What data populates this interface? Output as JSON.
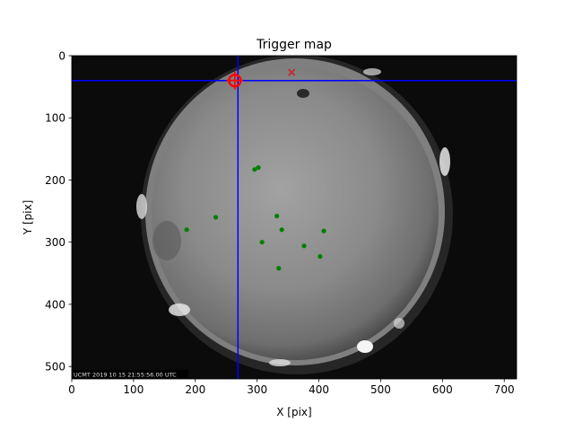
{
  "chart_data": {
    "type": "scatter",
    "title": "Trigger map",
    "xlabel": "X [pix]",
    "ylabel": "Y [pix]",
    "xlim": [
      0,
      720
    ],
    "ylim": [
      0,
      520
    ],
    "y_inverted": true,
    "x_ticks": [
      "0",
      "100",
      "200",
      "300",
      "400",
      "500",
      "600",
      "700"
    ],
    "y_ticks": [
      "0",
      "100",
      "200",
      "300",
      "400",
      "500"
    ],
    "grid": false,
    "background_image": "grayscale sky camera image (circular fisheye)",
    "timestamp_overlay": "UCMT 2019 10 15 21:55:56.00 UTC",
    "crosshair": {
      "x": 269,
      "y": 40,
      "color": "#0000ff"
    },
    "series": [
      {
        "marker": "circle",
        "color": "#008000",
        "points": [
          [
            296,
            183
          ],
          [
            302,
            180
          ],
          [
            186,
            280
          ],
          [
            233,
            260
          ],
          [
            332,
            258
          ],
          [
            340,
            280
          ],
          [
            308,
            300
          ],
          [
            376,
            306
          ],
          [
            408,
            282
          ],
          [
            402,
            323
          ],
          [
            335,
            342
          ]
        ]
      },
      {
        "marker": "x",
        "color": "#cc2222",
        "points": [
          [
            356,
            27
          ]
        ]
      },
      {
        "marker": "circle-plus",
        "color": "#ff0000",
        "points": [
          [
            264,
            40
          ]
        ]
      }
    ]
  },
  "colors": {
    "crosshair": "#0000ff",
    "trigger_points": "#008000",
    "cross_marker": "#cc2222",
    "ring_marker": "#ff0000"
  }
}
